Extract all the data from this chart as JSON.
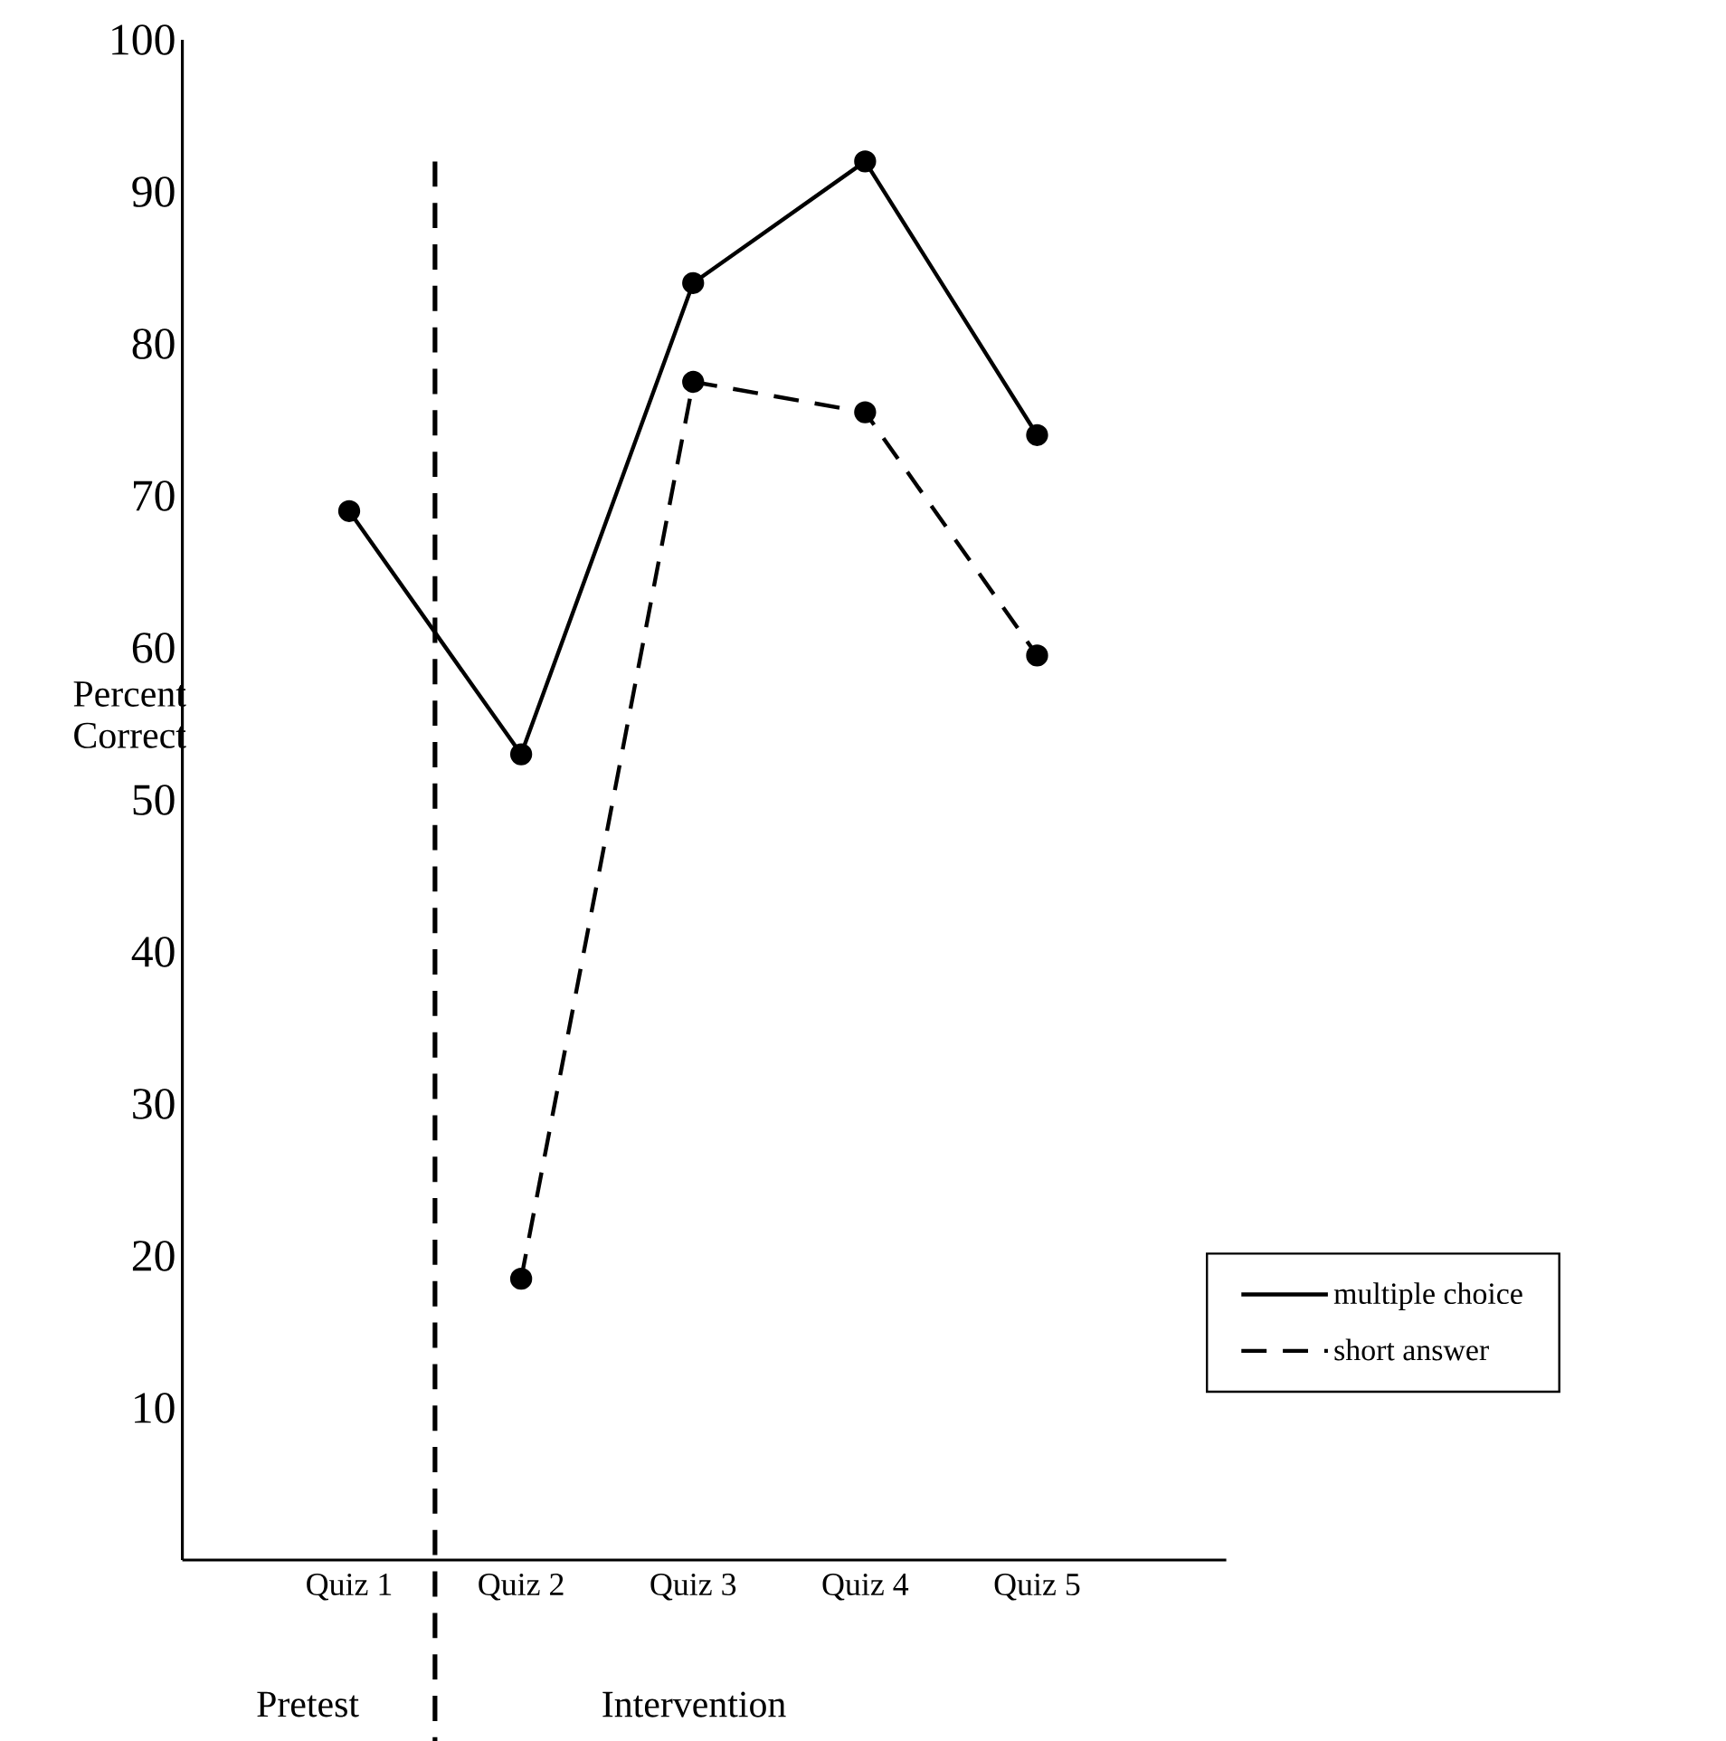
{
  "chart_data": {
    "type": "line",
    "ylabel": "Percent Correct",
    "categories": [
      "Quiz 1",
      "Quiz 2",
      "Quiz 3",
      "Quiz 4",
      "Quiz 5"
    ],
    "series": [
      {
        "name": "multiple choice",
        "color": "#000000",
        "line_style": "solid",
        "values": [
          69,
          53,
          84,
          92,
          74
        ]
      },
      {
        "name": "short answer",
        "color": "#000000",
        "line_style": "dashed",
        "values": [
          null,
          18.5,
          77.5,
          75.5,
          59.5
        ]
      }
    ],
    "ylim": [
      0,
      100
    ],
    "yticks": [
      10,
      20,
      30,
      40,
      50,
      60,
      70,
      80,
      90,
      100
    ],
    "annotations": [
      "Pretest",
      "Intervention"
    ],
    "marker": "circle",
    "legend": "bottom right",
    "grid": false
  }
}
